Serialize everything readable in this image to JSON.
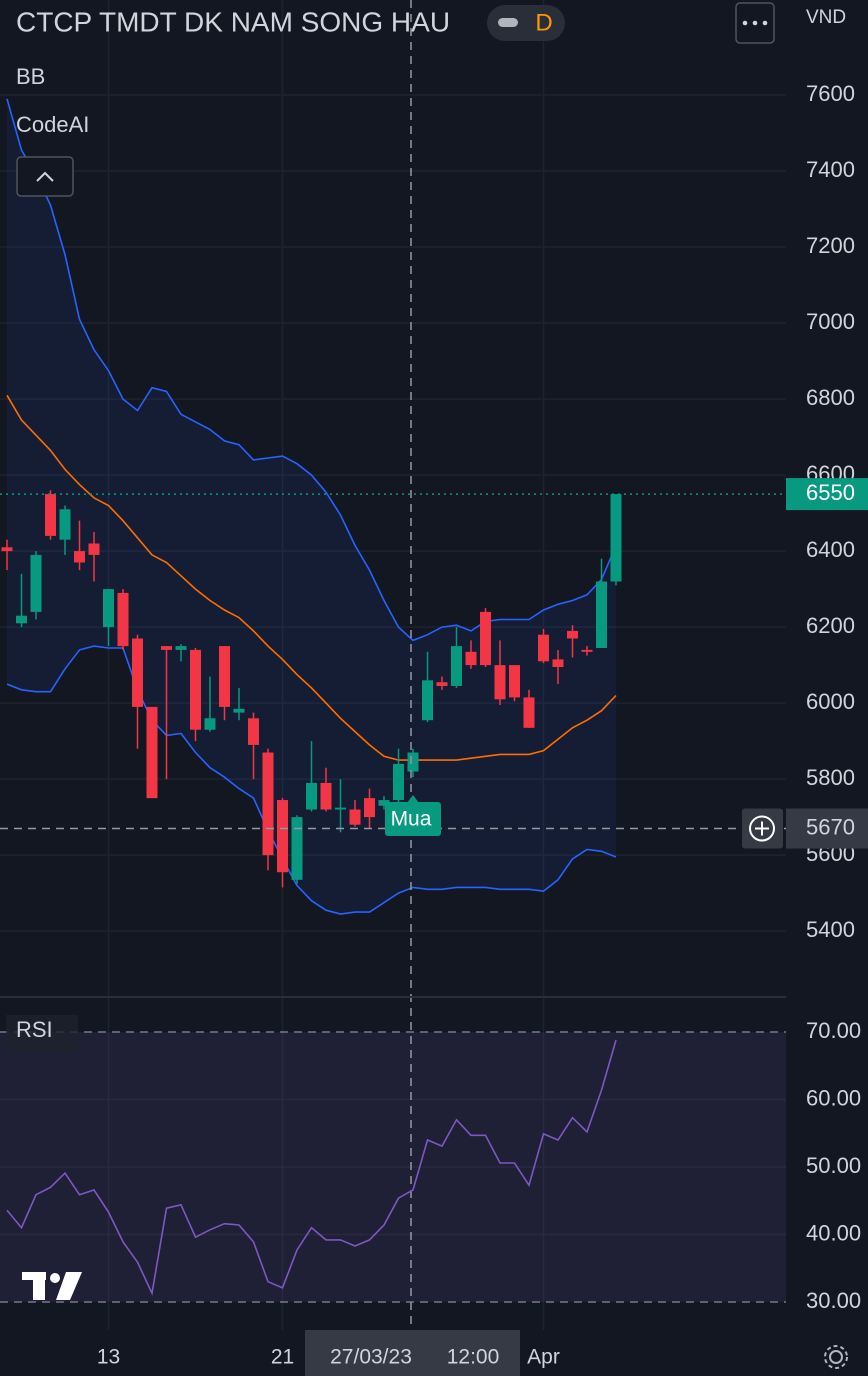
{
  "chart_data": [
    {
      "type": "candlestick",
      "title": "CTCP TMDT DK NAM SONG HAU",
      "timeframe": "D",
      "currency": "VND",
      "indicators": [
        "BB",
        "CodeAI"
      ],
      "signal_label": "Mua",
      "categories": [
        null,
        null,
        null,
        null,
        null,
        null,
        null,
        "13",
        null,
        null,
        null,
        null,
        null,
        null,
        null,
        null,
        null,
        null,
        null,
        "21",
        null,
        null,
        null,
        null,
        null,
        null,
        null,
        null,
        null,
        null,
        null,
        null,
        null,
        null,
        null,
        null,
        null,
        "Apr",
        null,
        null,
        null,
        null,
        null
      ],
      "open": [
        6410,
        6210,
        6240,
        6550,
        6430,
        6400,
        6420,
        6200,
        6290,
        6170,
        5990,
        6150,
        6140,
        6140,
        5930,
        6150,
        5975,
        5960,
        5870,
        5745,
        5535,
        5720,
        5790,
        5720,
        5720,
        5750,
        5730,
        5745,
        5820,
        5955,
        6055,
        6045,
        6135,
        6240,
        6100,
        6100,
        6015,
        6180,
        6115,
        6190,
        6140,
        6145,
        6320
      ],
      "high": [
        6430,
        6340,
        6400,
        6560,
        6520,
        6480,
        6450,
        6300,
        6300,
        6180,
        5990,
        6150,
        6155,
        6145,
        6070,
        6150,
        6040,
        5975,
        5880,
        5750,
        5705,
        5900,
        5830,
        5800,
        5745,
        5775,
        5755,
        5880,
        5880,
        6135,
        6070,
        6200,
        6165,
        6250,
        6165,
        6100,
        6035,
        6195,
        6140,
        6205,
        6150,
        6380,
        6550
      ],
      "low": [
        6350,
        6200,
        6220,
        6430,
        6390,
        6350,
        6320,
        6150,
        6140,
        5880,
        5750,
        5800,
        6110,
        5900,
        5925,
        5955,
        5955,
        5800,
        5560,
        5515,
        5525,
        5715,
        5715,
        5660,
        5675,
        5670,
        5720,
        5730,
        5805,
        5950,
        6035,
        6040,
        6090,
        6095,
        5995,
        6005,
        5935,
        6105,
        6050,
        6120,
        6125,
        6145,
        6310
      ],
      "close": [
        6400,
        6230,
        6390,
        6440,
        6510,
        6370,
        6390,
        6300,
        6150,
        5990,
        5750,
        6140,
        6150,
        5930,
        5960,
        5990,
        5985,
        5890,
        5600,
        5555,
        5700,
        5790,
        5720,
        5725,
        5680,
        5700,
        5745,
        5840,
        5870,
        6060,
        6045,
        6150,
        6100,
        6100,
        6010,
        6015,
        5935,
        6110,
        6095,
        6170,
        6135,
        6320,
        6550
      ],
      "up_color": "#089981",
      "down_color": "#f23645",
      "band_color": "#2962ff",
      "series": [
        {
          "color": "#2962ff",
          "values": [
            7590,
            7455,
            7390,
            7310,
            7180,
            7010,
            6930,
            6875,
            6800,
            6770,
            6830,
            6820,
            6760,
            6740,
            6720,
            6690,
            6680,
            6640,
            6645,
            6650,
            6630,
            6600,
            6555,
            6495,
            6415,
            6350,
            6270,
            6200,
            6165,
            6180,
            6200,
            6205,
            6190,
            6215,
            6220,
            6220,
            6220,
            6245,
            6260,
            6270,
            6285,
            6325,
            6415
          ]
        },
        {
          "color": "#ff6d00",
          "values": [
            6810,
            6745,
            6705,
            6665,
            6615,
            6575,
            6540,
            6520,
            6480,
            6435,
            6390,
            6370,
            6335,
            6300,
            6270,
            6245,
            6225,
            6190,
            6150,
            6115,
            6075,
            6040,
            6000,
            5960,
            5925,
            5890,
            5860,
            5850,
            5850,
            5850,
            5850,
            5850,
            5855,
            5860,
            5865,
            5865,
            5865,
            5875,
            5905,
            5935,
            5955,
            5980,
            6020
          ]
        },
        {
          "color": "#2962ff",
          "values": [
            6050,
            6035,
            6030,
            6030,
            6090,
            6140,
            6150,
            6145,
            6145,
            6035,
            5955,
            5915,
            5920,
            5870,
            5830,
            5805,
            5775,
            5750,
            5665,
            5590,
            5520,
            5480,
            5455,
            5445,
            5450,
            5450,
            5475,
            5500,
            5515,
            5510,
            5510,
            5515,
            5515,
            5515,
            5510,
            5510,
            5510,
            5505,
            5535,
            5590,
            5615,
            5610,
            5595
          ]
        }
      ],
      "ylim": [
        5232,
        7850
      ],
      "yticks": [
        5400,
        5600,
        5800,
        6000,
        6200,
        6400,
        6600,
        6800,
        7000,
        7200,
        7400,
        7600
      ],
      "grid": true,
      "crosshair_price": 5670,
      "crosshair_date": "27/03/23",
      "crosshair_time": "12:00"
    },
    {
      "type": "line",
      "title": "RSI",
      "series": [
        {
          "color": "#7e57c2",
          "values": [
            43.6,
            41.0,
            45.9,
            47.0,
            49.1,
            45.9,
            46.6,
            43.3,
            38.9,
            35.9,
            31.3,
            43.9,
            44.4,
            39.6,
            40.7,
            41.6,
            41.4,
            38.9,
            33.0,
            32.1,
            37.7,
            41.0,
            39.2,
            39.2,
            38.3,
            39.2,
            41.4,
            45.4,
            46.6,
            54.0,
            53.1,
            57.0,
            54.7,
            54.7,
            50.6,
            50.6,
            47.3,
            54.9,
            54.0,
            57.3,
            55.2,
            61.4,
            68.8
          ]
        }
      ],
      "ylim": [
        25.85,
        75.04
      ],
      "yticks": [
        {
          "value": 30,
          "label": "30.00"
        },
        {
          "value": 40,
          "label": "40.00"
        },
        {
          "value": 50,
          "label": "50.00"
        },
        {
          "value": 60,
          "label": "60.00"
        },
        {
          "value": 70,
          "label": "70.00"
        }
      ],
      "grid": true
    }
  ]
}
